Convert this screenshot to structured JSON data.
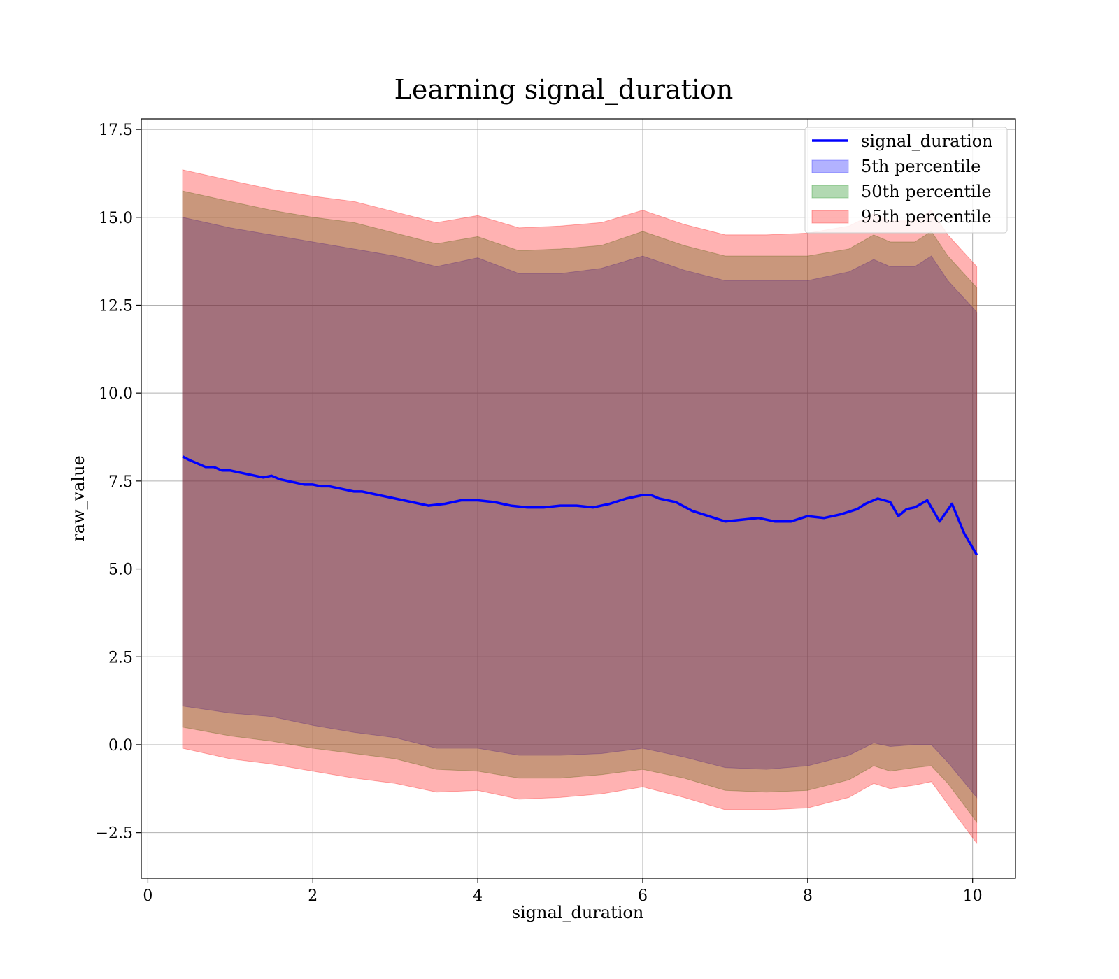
{
  "chart_data": {
    "type": "line",
    "title": "Learning signal_duration",
    "xlabel": "signal_duration",
    "ylabel": "raw_value",
    "xlim": [
      -0.08,
      10.52
    ],
    "ylim": [
      -3.8,
      17.8
    ],
    "x_ticks": [
      0,
      2,
      4,
      6,
      8,
      10
    ],
    "x_tick_labels": [
      "0",
      "2",
      "4",
      "6",
      "8",
      "10"
    ],
    "y_ticks": [
      -2.5,
      0.0,
      2.5,
      5.0,
      7.5,
      10.0,
      12.5,
      15.0,
      17.5
    ],
    "y_tick_labels": [
      "−2.5",
      "0.0",
      "2.5",
      "5.0",
      "7.5",
      "10.0",
      "12.5",
      "15.0",
      "17.5"
    ],
    "grid": true,
    "legend_position": "top-right",
    "series": [
      {
        "name": "signal_duration",
        "kind": "line",
        "color": "#0000ff",
        "x": [
          0.42,
          0.5,
          0.6,
          0.7,
          0.8,
          0.9,
          1.0,
          1.1,
          1.2,
          1.3,
          1.4,
          1.5,
          1.6,
          1.7,
          1.8,
          1.9,
          2.0,
          2.1,
          2.2,
          2.3,
          2.4,
          2.5,
          2.6,
          2.7,
          2.8,
          2.9,
          3.0,
          3.2,
          3.4,
          3.6,
          3.8,
          4.0,
          4.2,
          4.4,
          4.6,
          4.8,
          5.0,
          5.2,
          5.4,
          5.6,
          5.8,
          6.0,
          6.1,
          6.2,
          6.4,
          6.6,
          6.8,
          7.0,
          7.2,
          7.4,
          7.6,
          7.8,
          8.0,
          8.2,
          8.4,
          8.6,
          8.7,
          8.85,
          9.0,
          9.1,
          9.2,
          9.3,
          9.45,
          9.6,
          9.75,
          9.9,
          10.05
        ],
        "y": [
          8.2,
          8.1,
          8.0,
          7.9,
          7.9,
          7.8,
          7.8,
          7.75,
          7.7,
          7.65,
          7.6,
          7.65,
          7.55,
          7.5,
          7.45,
          7.4,
          7.4,
          7.35,
          7.35,
          7.3,
          7.25,
          7.2,
          7.2,
          7.15,
          7.1,
          7.05,
          7.0,
          6.9,
          6.8,
          6.85,
          6.95,
          6.95,
          6.9,
          6.8,
          6.75,
          6.75,
          6.8,
          6.8,
          6.75,
          6.85,
          7.0,
          7.1,
          7.1,
          7.0,
          6.9,
          6.65,
          6.5,
          6.35,
          6.4,
          6.45,
          6.35,
          6.35,
          6.5,
          6.45,
          6.55,
          6.7,
          6.85,
          7.0,
          6.9,
          6.5,
          6.7,
          6.75,
          6.95,
          6.35,
          6.85,
          6.0,
          5.4
        ]
      },
      {
        "name": "5th percentile",
        "kind": "band",
        "color": "#0000ff",
        "opacity": 0.3,
        "x": [
          0.42,
          1.0,
          1.5,
          2.0,
          2.5,
          3.0,
          3.5,
          4.0,
          4.5,
          5.0,
          5.5,
          6.0,
          6.5,
          7.0,
          7.5,
          8.0,
          8.5,
          8.8,
          9.0,
          9.3,
          9.5,
          9.7,
          10.05
        ],
        "lower": [
          1.1,
          0.9,
          0.8,
          0.55,
          0.35,
          0.2,
          -0.1,
          -0.1,
          -0.3,
          -0.3,
          -0.25,
          -0.1,
          -0.35,
          -0.65,
          -0.7,
          -0.6,
          -0.3,
          0.05,
          -0.05,
          0.0,
          0.0,
          -0.5,
          -1.5
        ],
        "upper": [
          15.0,
          14.7,
          14.5,
          14.3,
          14.1,
          13.9,
          13.6,
          13.85,
          13.4,
          13.4,
          13.55,
          13.9,
          13.5,
          13.2,
          13.2,
          13.2,
          13.45,
          13.8,
          13.6,
          13.6,
          13.9,
          13.2,
          12.3
        ]
      },
      {
        "name": "50th percentile",
        "kind": "band",
        "color": "#008000",
        "opacity": 0.3,
        "x": [
          0.42,
          1.0,
          1.5,
          2.0,
          2.5,
          3.0,
          3.5,
          4.0,
          4.5,
          5.0,
          5.5,
          6.0,
          6.5,
          7.0,
          7.5,
          8.0,
          8.5,
          8.8,
          9.0,
          9.3,
          9.5,
          9.7,
          10.05
        ],
        "lower": [
          0.5,
          0.25,
          0.1,
          -0.1,
          -0.25,
          -0.4,
          -0.7,
          -0.75,
          -0.95,
          -0.95,
          -0.85,
          -0.7,
          -0.95,
          -1.3,
          -1.35,
          -1.3,
          -1.0,
          -0.6,
          -0.75,
          -0.65,
          -0.6,
          -1.1,
          -2.2
        ],
        "upper": [
          15.75,
          15.45,
          15.2,
          15.0,
          14.85,
          14.55,
          14.25,
          14.45,
          14.05,
          14.1,
          14.2,
          14.6,
          14.2,
          13.9,
          13.9,
          13.9,
          14.1,
          14.5,
          14.3,
          14.3,
          14.6,
          13.9,
          13.0
        ]
      },
      {
        "name": "95th percentile",
        "kind": "band",
        "color": "#ff0000",
        "opacity": 0.3,
        "x": [
          0.42,
          1.0,
          1.5,
          2.0,
          2.5,
          3.0,
          3.5,
          4.0,
          4.5,
          5.0,
          5.5,
          6.0,
          6.5,
          7.0,
          7.5,
          8.0,
          8.5,
          8.8,
          9.0,
          9.3,
          9.5,
          9.7,
          10.05
        ],
        "lower": [
          -0.1,
          -0.4,
          -0.55,
          -0.75,
          -0.95,
          -1.1,
          -1.35,
          -1.3,
          -1.55,
          -1.5,
          -1.4,
          -1.2,
          -1.5,
          -1.85,
          -1.85,
          -1.8,
          -1.5,
          -1.1,
          -1.25,
          -1.15,
          -1.05,
          -1.7,
          -2.8
        ],
        "upper": [
          16.35,
          16.05,
          15.8,
          15.6,
          15.45,
          15.15,
          14.85,
          15.05,
          14.7,
          14.75,
          14.85,
          15.2,
          14.8,
          14.5,
          14.5,
          14.55,
          14.75,
          15.1,
          14.9,
          14.9,
          15.2,
          14.5,
          13.6
        ]
      }
    ]
  }
}
